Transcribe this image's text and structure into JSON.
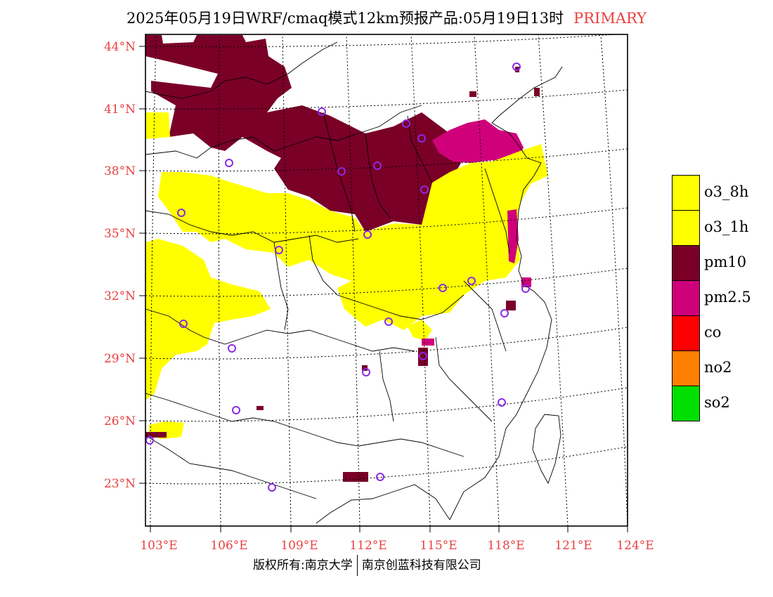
{
  "title": {
    "text": "2025年05月19日WRF/cmaq模式12km预报产品:05月19日13时",
    "tag": "PRIMARY"
  },
  "colors": {
    "axis_label": "#e84040",
    "o3_8h": "#ffff00",
    "o3_1h": "#ffff00",
    "pm10": "#7a0028",
    "pm25": "#d0007a",
    "co": "#ff0000",
    "no2": "#ff8000",
    "so2": "#00e000",
    "station_marker": "#8a2be2"
  },
  "axes": {
    "lat_labels": [
      "44°N",
      "41°N",
      "38°N",
      "35°N",
      "32°N",
      "29°N",
      "26°N",
      "23°N"
    ],
    "lon_labels": [
      "103°E",
      "106°E",
      "109°E",
      "112°E",
      "115°E",
      "118°E",
      "121°E",
      "124°E"
    ]
  },
  "legend": {
    "items": [
      {
        "label": "o3_8h",
        "color": "#ffff00"
      },
      {
        "label": "o3_1h",
        "color": "#ffff00"
      },
      {
        "label": "pm10",
        "color": "#7a0028"
      },
      {
        "label": "pm2.5",
        "color": "#d0007a"
      },
      {
        "label": "co",
        "color": "#ff0000"
      },
      {
        "label": "no2",
        "color": "#ff8000"
      },
      {
        "label": "so2",
        "color": "#00e000"
      }
    ]
  },
  "footer": {
    "left": "版权所有:南京大学",
    "right": "南京创蓝科技有限公司"
  }
}
